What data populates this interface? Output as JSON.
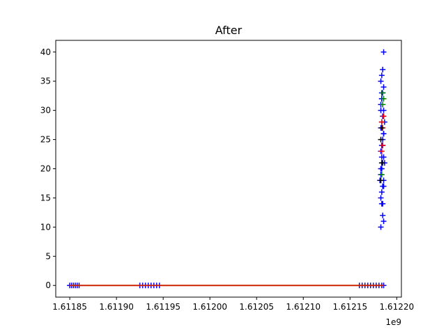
{
  "chart_data": {
    "type": "scatter",
    "title": "After",
    "xlabel": "",
    "ylabel": "",
    "x_offset_label": "1e9",
    "xlim": [
      1.611835,
      1.612205
    ],
    "ylim": [
      -2,
      42
    ],
    "x_ticks": [
      1.61185,
      1.6119,
      1.61195,
      1.612,
      1.61205,
      1.6121,
      1.61215,
      1.6122
    ],
    "x_tick_labels": [
      "1.61185",
      "1.61190",
      "1.61195",
      "1.61200",
      "1.61205",
      "1.61210",
      "1.61215",
      "1.61220"
    ],
    "y_ticks": [
      0,
      5,
      10,
      15,
      20,
      25,
      30,
      35,
      40
    ],
    "y_tick_labels": [
      "0",
      "5",
      "10",
      "15",
      "20",
      "25",
      "30",
      "35",
      "40"
    ],
    "grid": false,
    "colors": {
      "blue": "#0000ff",
      "red": "#ff0000",
      "green": "#008000",
      "black": "#000000",
      "line": "#cc2200"
    },
    "series": [
      {
        "marker": "+",
        "color": "#0000ff",
        "x": [
          1.61185,
          1.611852,
          1.611854,
          1.611856,
          1.611858,
          1.61186,
          1.611925,
          1.611928,
          1.611931,
          1.611934,
          1.611937,
          1.61194,
          1.611943,
          1.611946,
          1.61216,
          1.612163,
          1.612166,
          1.612169,
          1.612172,
          1.612175,
          1.612178,
          1.612181,
          1.612184,
          1.612186,
          1.612183,
          1.612184,
          1.612185,
          1.612186,
          1.612183,
          1.612184,
          1.612185,
          1.612186,
          1.612183,
          1.612184,
          1.612185,
          1.612186,
          1.612183,
          1.612184,
          1.612185,
          1.612186,
          1.612183,
          1.612184,
          1.612185,
          1.612186,
          1.612183,
          1.612184,
          1.612185,
          1.612186,
          1.612182,
          1.612183,
          1.612184,
          1.612185,
          1.612186,
          1.612187,
          1.612183,
          1.612184,
          1.612185,
          1.612186,
          1.612183,
          1.612184,
          1.612185,
          1.612186,
          1.612187,
          1.612184
        ],
        "y": [
          0,
          0,
          0,
          0,
          0,
          0,
          0,
          0,
          0,
          0,
          0,
          0,
          0,
          0,
          0,
          0,
          0,
          0,
          0,
          0,
          0,
          0,
          0,
          0,
          15,
          16,
          17,
          18,
          19,
          20,
          21,
          22,
          23,
          24,
          25,
          26,
          27,
          28,
          29,
          30,
          31,
          32,
          33,
          34,
          35,
          36,
          37,
          40,
          18,
          20,
          22,
          24,
          26,
          28,
          30,
          32,
          12,
          11,
          10,
          14,
          14,
          17,
          21,
          33
        ]
      },
      {
        "marker": "+",
        "color": "#ff0000",
        "x": [
          1.612184,
          1.612185,
          1.612185,
          1.612184,
          1.612186
        ],
        "y": [
          23,
          24,
          27,
          28,
          29
        ]
      },
      {
        "marker": "+",
        "color": "#008000",
        "x": [
          1.612185,
          1.612186,
          1.612185,
          1.612184
        ],
        "y": [
          31,
          32,
          33,
          19
        ]
      },
      {
        "marker": "+",
        "color": "#000000",
        "x": [
          1.612183,
          1.612184,
          1.612183,
          1.612184
        ],
        "y": [
          18,
          21,
          25,
          27
        ]
      },
      {
        "marker": "line",
        "color": "#cc2200",
        "x": [
          1.61185,
          1.612186
        ],
        "y": [
          0,
          0
        ]
      }
    ]
  }
}
